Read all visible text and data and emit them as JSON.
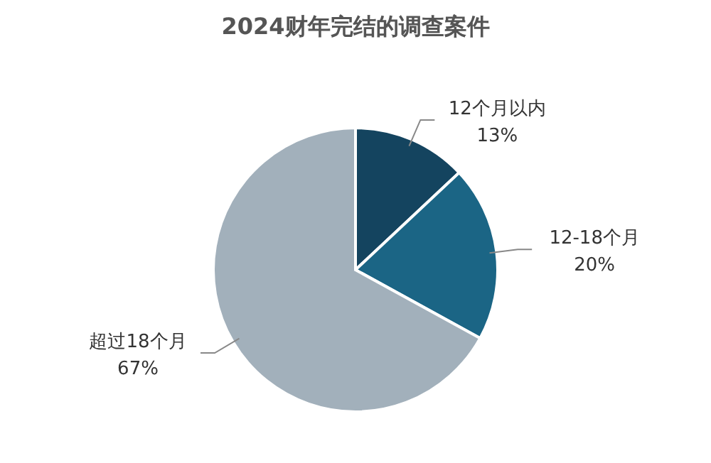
{
  "chart_data": {
    "type": "pie",
    "title": "2024财年完结的调查案件",
    "categories": [
      "12个月以内",
      "12-18个月",
      "超过18个月"
    ],
    "values": [
      13,
      20,
      67
    ],
    "colors": [
      "#14445f",
      "#1b6585",
      "#a2b0bb"
    ],
    "value_labels": [
      "13%",
      "20%",
      "67%"
    ]
  }
}
